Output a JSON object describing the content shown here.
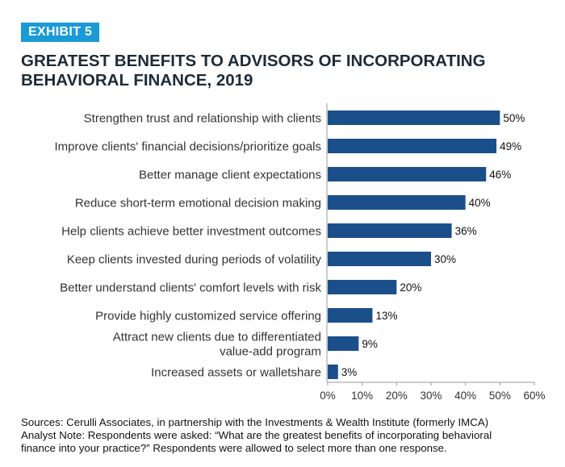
{
  "badge": "EXHIBIT 5",
  "title_lines": [
    "GREATEST BENEFITS TO ADVISORS OF INCORPORATING",
    "BEHAVIORAL FINANCE, 2019"
  ],
  "footer": {
    "sources": "Sources: Cerulli Associates, in partnership with the Investments & Wealth Institute (formerly IMCA)",
    "note_line1": "Analyst Note: Respondents were asked: “What are the greatest benefits of incorporating behavioral",
    "note_line2": "finance into your practice?” Respondents were allowed to select more than one response."
  },
  "colors": {
    "bar": "#1b4f8a",
    "badge": "#1a9ad6",
    "axis": "#999999"
  },
  "chart_data": {
    "type": "bar",
    "orientation": "horizontal",
    "title": "GREATEST BENEFITS TO ADVISORS OF INCORPORATING BEHAVIORAL FINANCE, 2019",
    "categories": [
      [
        "Strengthen trust and relationship with clients"
      ],
      [
        "Improve clients' financial decisions/prioritize goals"
      ],
      [
        "Better manage client expectations"
      ],
      [
        "Reduce short-term emotional decision making"
      ],
      [
        "Help clients achieve better investment outcomes"
      ],
      [
        "Keep clients invested during periods of volatility"
      ],
      [
        "Better understand clients' comfort levels with risk"
      ],
      [
        "Provide highly customized service offering"
      ],
      [
        "Attract new clients due to differentiated",
        "value-add program"
      ],
      [
        "Increased assets or walletshare"
      ]
    ],
    "values": [
      50,
      49,
      46,
      40,
      36,
      30,
      20,
      13,
      9,
      3
    ],
    "value_labels": [
      "50%",
      "49%",
      "46%",
      "40%",
      "36%",
      "30%",
      "20%",
      "13%",
      "9%",
      "3%"
    ],
    "xlim": [
      0,
      60
    ],
    "xticks": [
      "0%",
      "10%",
      "20%",
      "30%",
      "40%",
      "50%",
      "60%"
    ],
    "xlabel": "",
    "ylabel": "",
    "grid": false
  }
}
